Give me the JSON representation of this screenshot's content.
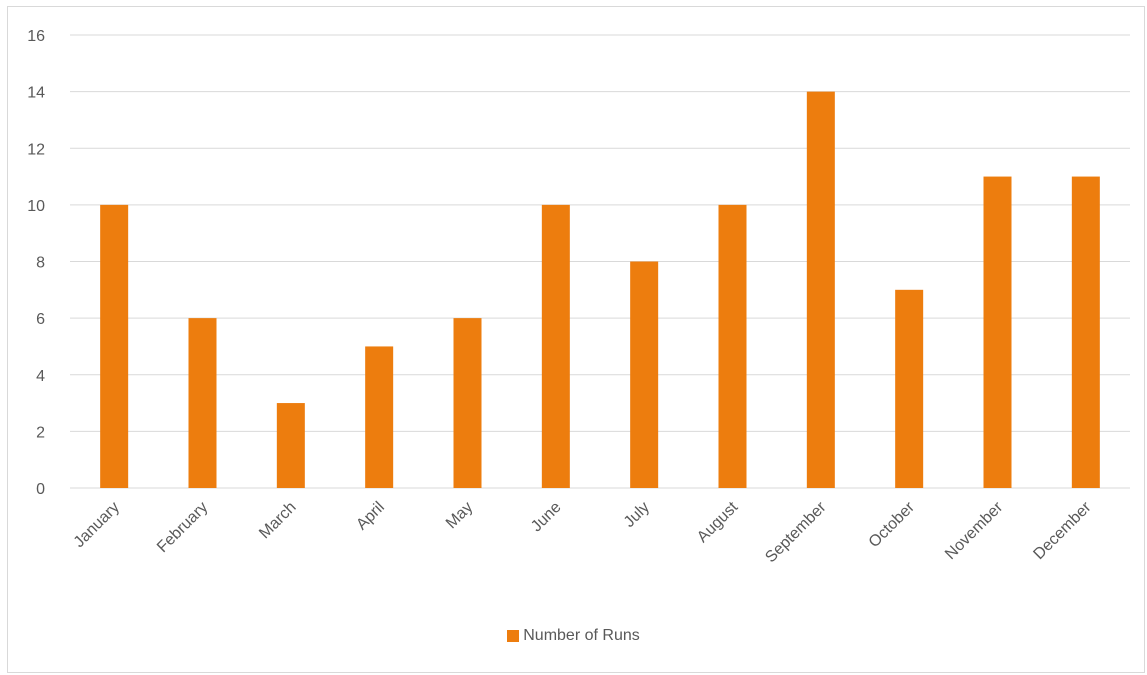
{
  "chart_data": {
    "type": "bar",
    "categories": [
      "January",
      "February",
      "March",
      "April",
      "May",
      "June",
      "July",
      "August",
      "September",
      "October",
      "November",
      "December"
    ],
    "series": [
      {
        "name": "Number of Runs",
        "values": [
          10,
          6,
          3,
          5,
          6,
          10,
          8,
          10,
          14,
          7,
          11,
          11
        ],
        "color": "#ed7d0e"
      }
    ],
    "title": "",
    "xlabel": "",
    "ylabel": "",
    "ylim": [
      0,
      16
    ],
    "yticks": [
      0,
      2,
      4,
      6,
      8,
      10,
      12,
      14,
      16
    ],
    "grid": true,
    "legend_position": "bottom"
  },
  "colors": {
    "gridline": "#d9d9d9",
    "axis_text": "#595959"
  }
}
